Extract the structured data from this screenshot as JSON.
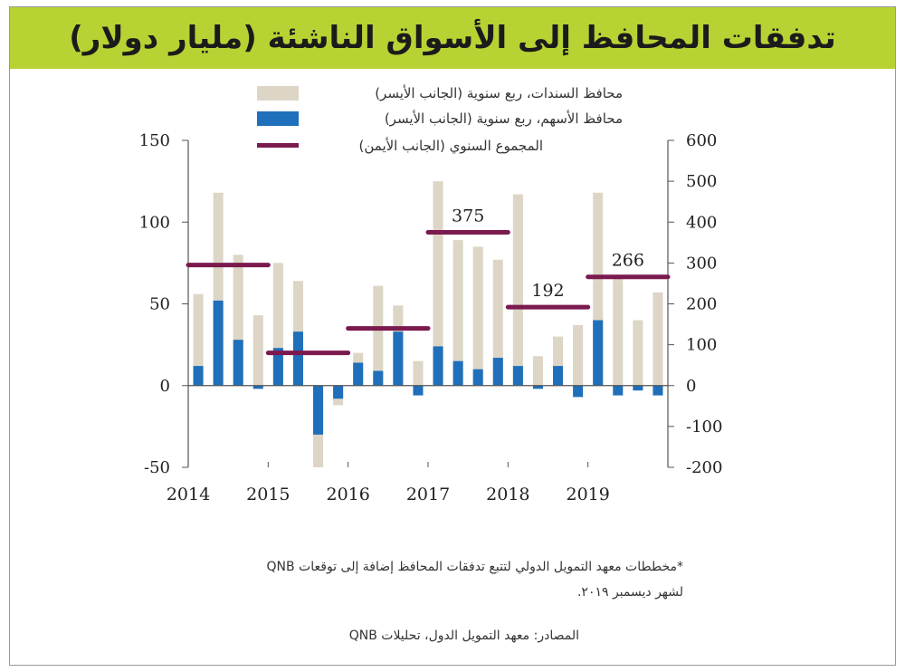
{
  "header": {
    "title": "تدفقات المحافظ إلى الأسواق الناشئة (مليار دولار)"
  },
  "colors": {
    "title_bg": "#b7d233",
    "bonds": "#ddd6c6",
    "equities": "#1f6fba",
    "annual": "#7b1a4e"
  },
  "chart_data": {
    "type": "bar",
    "title": "تدفقات المحافظ إلى الأسواق الناشئة (مليار دولار)",
    "legend": [
      {
        "key": "bonds",
        "label": "محافظ السندات، ربع سنوية (الجانب الأيسر)"
      },
      {
        "key": "equities",
        "label": "محافظ الأسهم، ربع سنوية (الجانب الأيسر)"
      },
      {
        "key": "annual",
        "label": "المجموع السنوي (الجانب الأيمن)"
      }
    ],
    "years": [
      "2014",
      "2015",
      "2016",
      "2017",
      "2018",
      "2019"
    ],
    "quarters": [
      "2014Q1",
      "2014Q2",
      "2014Q3",
      "2014Q4",
      "2015Q1",
      "2015Q2",
      "2015Q3",
      "2015Q4",
      "2016Q1",
      "2016Q2",
      "2016Q3",
      "2016Q4",
      "2017Q1",
      "2017Q2",
      "2017Q3",
      "2017Q4",
      "2018Q1",
      "2018Q2",
      "2018Q3",
      "2018Q4",
      "2019Q1",
      "2019Q2",
      "2019Q3",
      "2019Q4"
    ],
    "series": [
      {
        "name": "bonds",
        "axis": "left",
        "values": [
          56,
          118,
          80,
          43,
          75,
          64,
          -50,
          -12,
          20,
          61,
          49,
          15,
          125,
          89,
          85,
          77,
          117,
          18,
          30,
          37,
          118,
          66,
          40,
          57
        ]
      },
      {
        "name": "equities",
        "axis": "left",
        "values": [
          12,
          52,
          28,
          -2,
          23,
          33,
          -30,
          -8,
          14,
          9,
          33,
          -6,
          24,
          15,
          10,
          17,
          12,
          -2,
          12,
          -7,
          40,
          -6,
          -3,
          -6
        ]
      },
      {
        "name": "annual",
        "axis": "right",
        "values": [
          295,
          80,
          140,
          375,
          192,
          266
        ]
      }
    ],
    "annual_labels": [
      {
        "year_index": 3,
        "text": "375"
      },
      {
        "year_index": 4,
        "text": "192"
      },
      {
        "year_index": 5,
        "text": "266"
      }
    ],
    "y_left": {
      "min": -50,
      "max": 150,
      "ticks": [
        "150",
        "100",
        "50",
        "0",
        "-50"
      ]
    },
    "y_right": {
      "min": -200,
      "max": 600,
      "ticks": [
        "600",
        "500",
        "400",
        "300",
        "200",
        "100",
        "0",
        "-100",
        "-200"
      ]
    }
  },
  "footnote": {
    "line1": "*مخططات معهد التمويل الدولي لتتبع تدفقات المحافظ إضافة إلى توقعات QNB",
    "line2": "لشهر ديسمبر ٢٠١٩.",
    "source": "المصادر: معهد التمويل الدول، تحليلات QNB"
  }
}
